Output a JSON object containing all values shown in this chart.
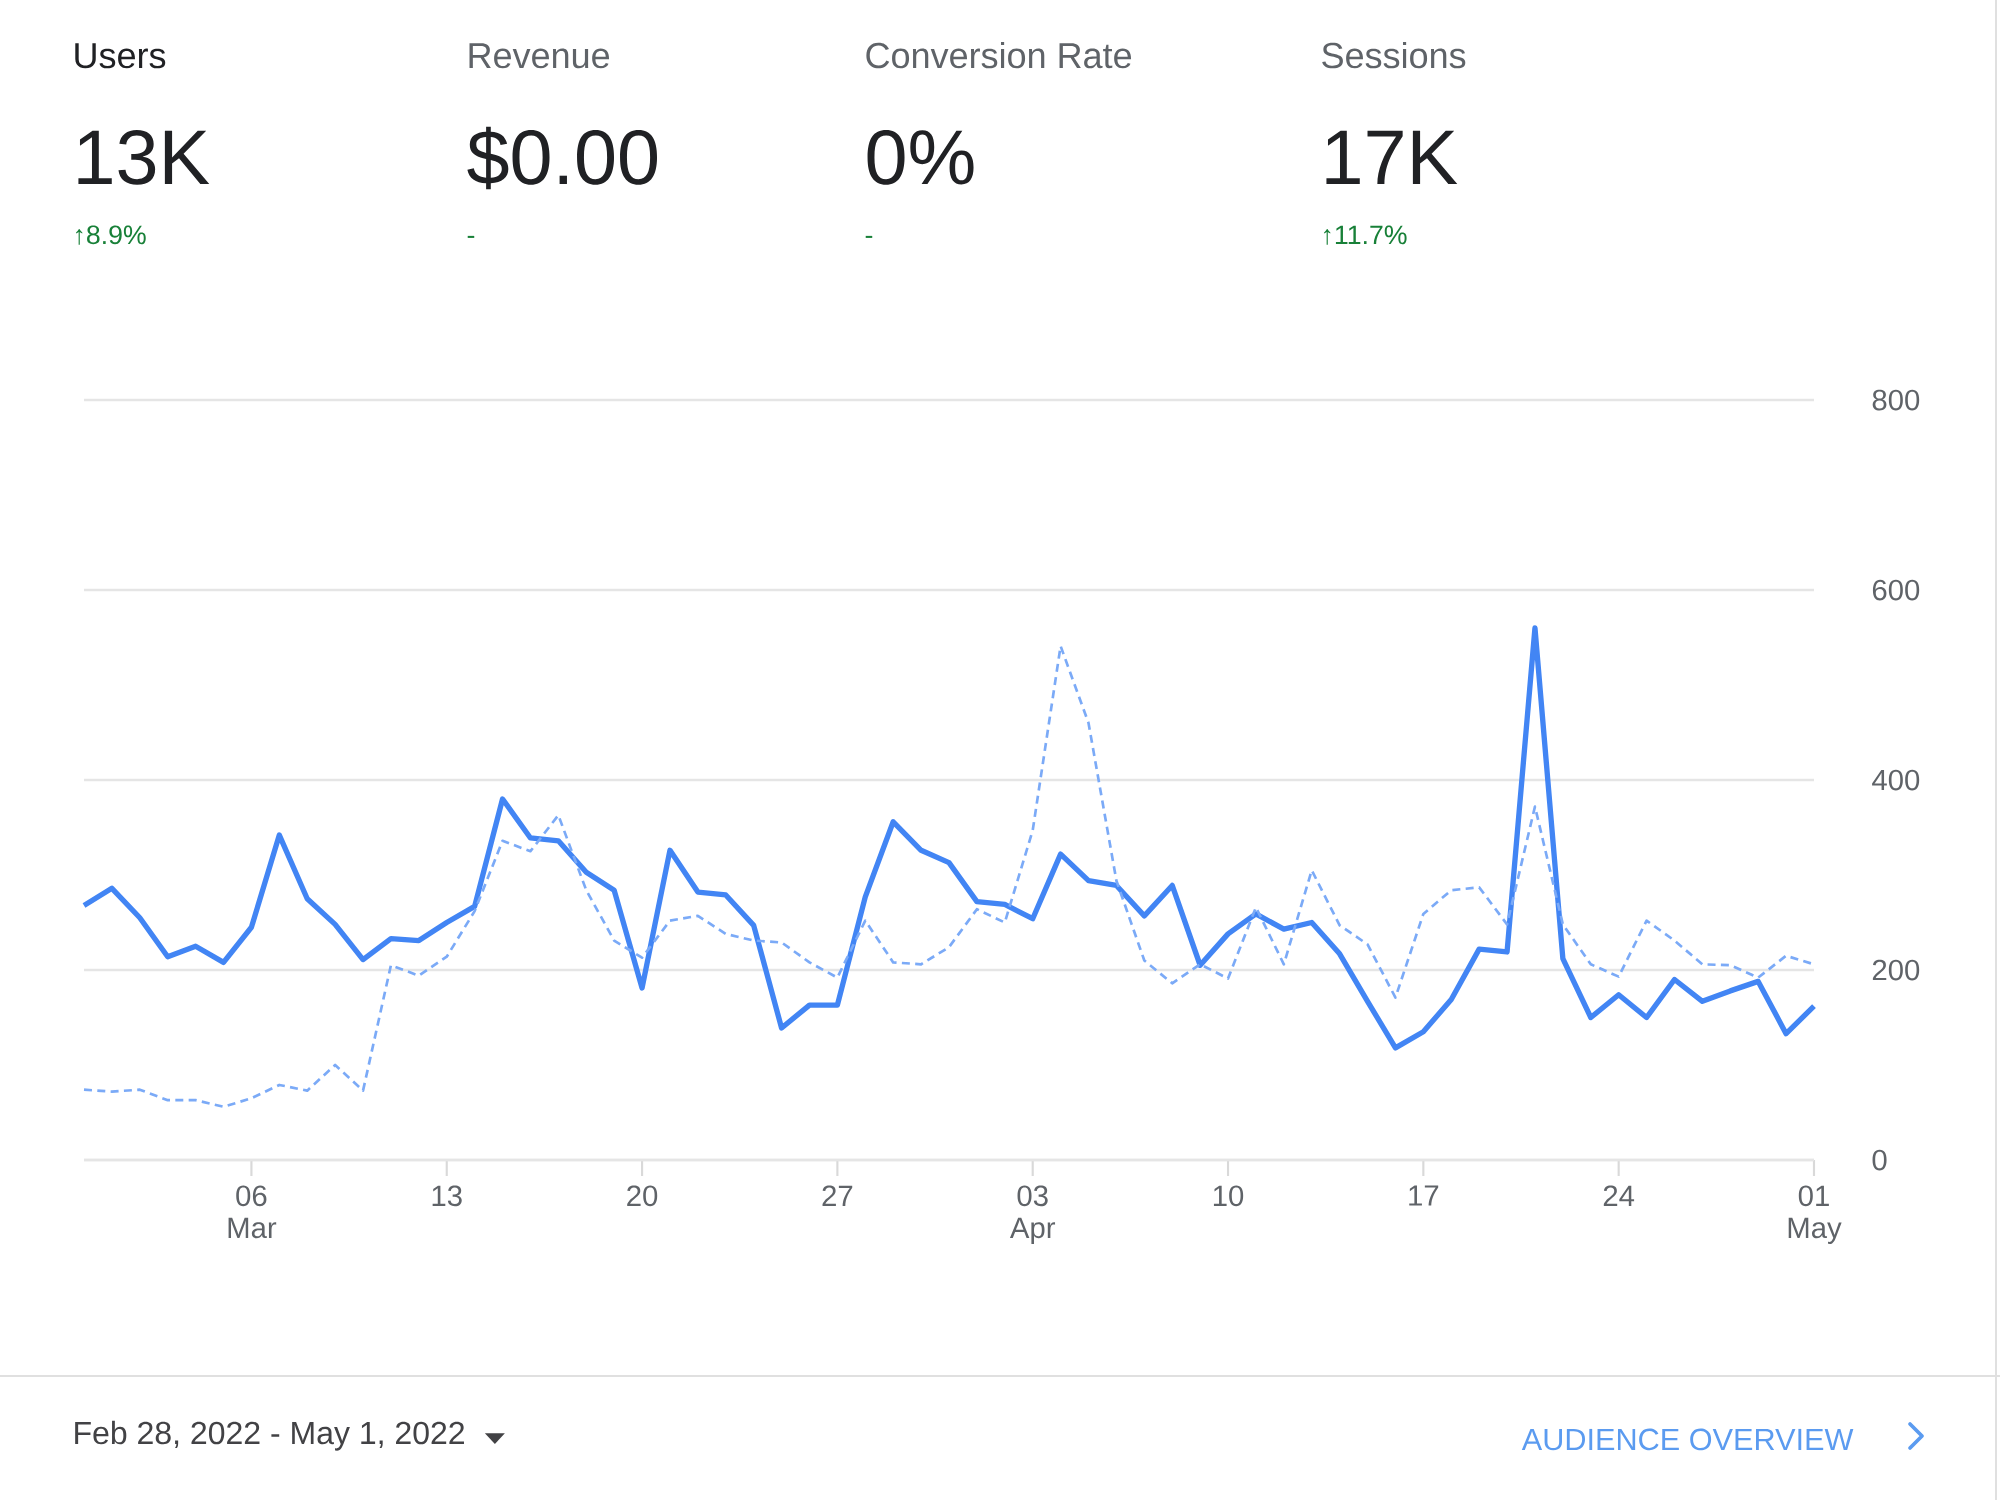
{
  "chart_data": {
    "type": "line",
    "x": [
      "2022-02-28",
      "2022-03-01",
      "2022-03-02",
      "2022-03-03",
      "2022-03-04",
      "2022-03-05",
      "2022-03-06",
      "2022-03-07",
      "2022-03-08",
      "2022-03-09",
      "2022-03-10",
      "2022-03-11",
      "2022-03-12",
      "2022-03-13",
      "2022-03-14",
      "2022-03-15",
      "2022-03-16",
      "2022-03-17",
      "2022-03-18",
      "2022-03-19",
      "2022-03-20",
      "2022-03-21",
      "2022-03-22",
      "2022-03-23",
      "2022-03-24",
      "2022-03-25",
      "2022-03-26",
      "2022-03-27",
      "2022-03-28",
      "2022-03-29",
      "2022-03-30",
      "2022-03-31",
      "2022-04-01",
      "2022-04-02",
      "2022-04-03",
      "2022-04-04",
      "2022-04-05",
      "2022-04-06",
      "2022-04-07",
      "2022-04-08",
      "2022-04-09",
      "2022-04-10",
      "2022-04-11",
      "2022-04-12",
      "2022-04-13",
      "2022-04-14",
      "2022-04-15",
      "2022-04-16",
      "2022-04-17",
      "2022-04-18",
      "2022-04-19",
      "2022-04-20",
      "2022-04-21",
      "2022-04-22",
      "2022-04-23",
      "2022-04-24",
      "2022-04-25",
      "2022-04-26",
      "2022-04-27",
      "2022-04-28",
      "2022-04-29",
      "2022-04-30",
      "2022-05-01"
    ],
    "series": [
      {
        "color": "#4285f4",
        "line_style": "solid",
        "values": [
          268,
          286,
          255,
          214,
          225,
          208,
          245,
          342,
          275,
          248,
          211,
          233,
          231,
          250,
          267,
          380,
          339,
          336,
          303,
          284,
          181,
          326,
          282,
          279,
          247,
          139,
          163,
          163,
          277,
          356,
          326,
          313,
          272,
          269,
          254,
          322,
          294,
          289,
          257,
          289,
          205,
          238,
          259,
          243,
          250,
          217,
          167,
          118,
          135,
          169,
          222,
          219,
          560,
          212,
          150,
          174,
          150,
          190,
          167,
          178,
          188,
          133,
          162
        ]
      },
      {
        "color": "#7baaf7",
        "line_style": "dashed",
        "values": [
          74,
          72,
          74,
          63,
          63,
          56,
          65,
          79,
          73,
          100,
          73,
          205,
          194,
          214,
          262,
          336,
          325,
          363,
          284,
          231,
          213,
          252,
          257,
          238,
          231,
          229,
          208,
          192,
          252,
          208,
          206,
          224,
          264,
          250,
          347,
          541,
          460,
          294,
          210,
          186,
          206,
          191,
          266,
          206,
          305,
          247,
          227,
          171,
          259,
          284,
          287,
          248,
          372,
          248,
          206,
          193,
          252,
          231,
          206,
          205,
          192,
          215,
          206
        ]
      }
    ],
    "xlim": [
      "2022-02-28",
      "2022-05-01"
    ],
    "xticks": [
      {
        "value": "2022-03-06",
        "label": "06 Mar"
      },
      {
        "value": "2022-03-13",
        "label": "13"
      },
      {
        "value": "2022-03-20",
        "label": "20"
      },
      {
        "value": "2022-03-27",
        "label": "27"
      },
      {
        "value": "2022-04-03",
        "label": "03 Apr"
      },
      {
        "value": "2022-04-10",
        "label": "10"
      },
      {
        "value": "2022-04-17",
        "label": "17"
      },
      {
        "value": "2022-04-24",
        "label": "24"
      },
      {
        "value": "2022-05-01",
        "label": "01 May"
      }
    ],
    "ylim": [
      0,
      800
    ],
    "yticks": [
      0,
      200,
      400,
      600,
      800
    ],
    "grid": "y",
    "annotations": [
      "Users",
      "13K",
      "↑8.9%",
      "Revenue",
      "$0.00",
      "-",
      "Conversion Rate",
      "0%",
      "-",
      "Sessions",
      "17K",
      "↑11.7%",
      "Feb 28, 2022 - May 1, 2022",
      "AUDIENCE OVERVIEW"
    ]
  }
}
